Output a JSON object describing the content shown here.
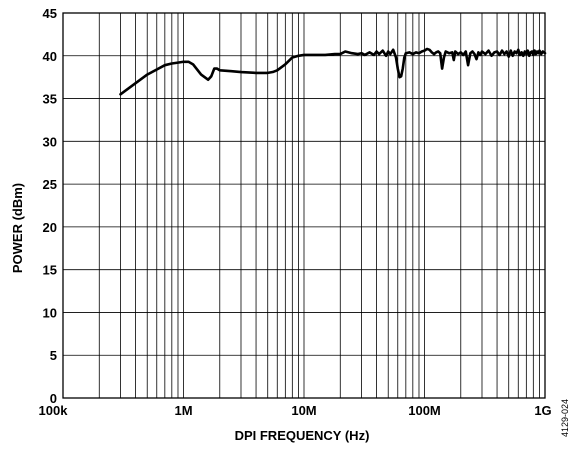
{
  "chart_data": {
    "type": "line",
    "title": "",
    "xlabel": "DPI FREQUENCY (Hz)",
    "ylabel": "POWER (dBm)",
    "x_scale": "log",
    "xlim": [
      100000,
      1000000000
    ],
    "ylim": [
      0,
      45
    ],
    "grid": true,
    "legend": "none",
    "xticks": [
      {
        "value": 100000,
        "label": "100k"
      },
      {
        "value": 1000000,
        "label": "1M"
      },
      {
        "value": 10000000,
        "label": "10M"
      },
      {
        "value": 100000000,
        "label": "100M"
      },
      {
        "value": 1000000000,
        "label": "1G"
      }
    ],
    "yticks": [
      {
        "value": 0,
        "label": "0"
      },
      {
        "value": 5,
        "label": "5"
      },
      {
        "value": 10,
        "label": "10"
      },
      {
        "value": 15,
        "label": "15"
      },
      {
        "value": 20,
        "label": "20"
      },
      {
        "value": 25,
        "label": "25"
      },
      {
        "value": 30,
        "label": "30"
      },
      {
        "value": 35,
        "label": "35"
      },
      {
        "value": 40,
        "label": "40"
      },
      {
        "value": 45,
        "label": "45"
      }
    ],
    "series": [
      {
        "x": [
          300000,
          400000,
          500000,
          600000,
          700000,
          800000,
          900000,
          1000000,
          1100000,
          1200000,
          1400000,
          1600000,
          1700000,
          1800000,
          1900000,
          2000000,
          2500000,
          3000000,
          4000000,
          5000000,
          5500000,
          6000000,
          7000000,
          8000000,
          9000000,
          10000000,
          12000000,
          15000000,
          18000000,
          20000000,
          22000000,
          25000000,
          28000000,
          30000000,
          32000000,
          35000000,
          38000000,
          40000000,
          42000000,
          45000000,
          48000000,
          50000000,
          52000000,
          55000000,
          58000000,
          60000000,
          62000000,
          64000000,
          66000000,
          68000000,
          70000000,
          75000000,
          80000000,
          85000000,
          90000000,
          95000000,
          100000000,
          105000000,
          110000000,
          115000000,
          120000000,
          125000000,
          130000000,
          135000000,
          140000000,
          145000000,
          150000000,
          160000000,
          170000000,
          175000000,
          180000000,
          190000000,
          200000000,
          210000000,
          220000000,
          230000000,
          240000000,
          250000000,
          260000000,
          270000000,
          280000000,
          290000000,
          300000000,
          320000000,
          340000000,
          360000000,
          380000000,
          400000000,
          420000000,
          440000000,
          460000000,
          480000000,
          500000000,
          520000000,
          540000000,
          560000000,
          580000000,
          600000000,
          620000000,
          640000000,
          660000000,
          680000000,
          700000000,
          720000000,
          740000000,
          760000000,
          780000000,
          800000000,
          820000000,
          840000000,
          860000000,
          880000000,
          900000000,
          930000000,
          960000000,
          1000000000
        ],
        "y": [
          35.5,
          36.8,
          37.8,
          38.4,
          38.9,
          39.1,
          39.2,
          39.3,
          39.3,
          39.0,
          37.8,
          37.2,
          37.6,
          38.5,
          38.5,
          38.3,
          38.2,
          38.1,
          38.0,
          38.0,
          38.1,
          38.3,
          39.0,
          39.8,
          40.0,
          40.1,
          40.1,
          40.1,
          40.2,
          40.2,
          40.5,
          40.3,
          40.2,
          40.3,
          40.1,
          40.4,
          40.1,
          40.5,
          40.2,
          40.6,
          40.0,
          40.5,
          40.2,
          40.7,
          39.8,
          38.5,
          37.5,
          37.6,
          38.5,
          39.8,
          40.3,
          40.4,
          40.2,
          40.4,
          40.3,
          40.5,
          40.6,
          40.8,
          40.7,
          40.4,
          40.2,
          40.4,
          40.5,
          40.3,
          38.5,
          39.8,
          40.5,
          40.3,
          40.4,
          39.5,
          40.5,
          40.2,
          40.4,
          40.1,
          40.5,
          38.9,
          40.3,
          40.5,
          40.2,
          39.6,
          40.4,
          40.1,
          40.5,
          40.2,
          40.6,
          40.0,
          40.4,
          40.5,
          40.1,
          40.6,
          40.2,
          40.5,
          39.9,
          40.6,
          40.0,
          40.5,
          40.3,
          40.7,
          40.1,
          40.4,
          40.0,
          40.5,
          40.2,
          40.6,
          40.0,
          40.4,
          40.5,
          40.1,
          40.6,
          40.2,
          40.5,
          40.3,
          40.6,
          40.2,
          40.5,
          40.3
        ]
      }
    ]
  },
  "figure_id": "4129-024"
}
